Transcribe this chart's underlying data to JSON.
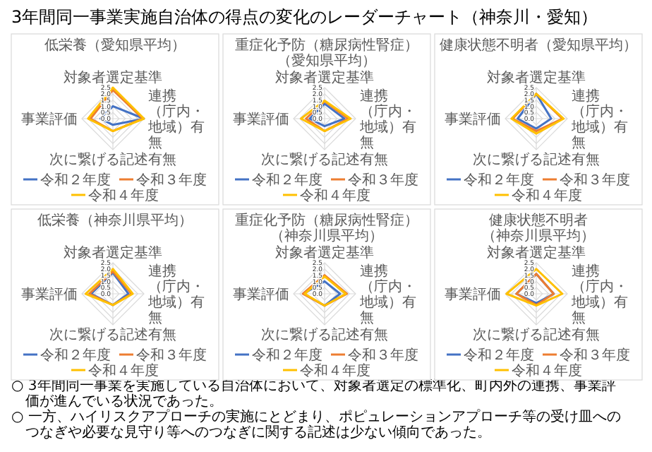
{
  "chart_data": [
    {
      "type": "other",
      "title": "3年間同一事業実施自治体の得点の変化のレーダーチャート（神奈川・愛知）"
    },
    {
      "type": "radar",
      "title": "低栄養（愛知県平均）",
      "categories": [
        "対象者選定基準",
        "連携（庁内・地域）有無",
        "次に繋げる記述有無",
        "事業評価"
      ],
      "ylim": [
        0,
        2.5
      ],
      "yticks": [
        {
          "value": 0,
          "label": "0.0"
        },
        {
          "value": 0.5,
          "label": "0.5"
        },
        {
          "value": 1,
          "label": "1.0"
        },
        {
          "value": 1.5,
          "label": "1.5"
        },
        {
          "value": 2,
          "label": "2.0"
        },
        {
          "value": 2.5,
          "label": "2.5"
        }
      ],
      "grid": true,
      "legend": "bottom",
      "series": [
        {
          "name": "令和２年度",
          "color": "#4472c4",
          "values": [
            1.0,
            2.5,
            0.5,
            1.0
          ]
        },
        {
          "name": "令和３年度",
          "color": "#ed7d31",
          "values": [
            2.3,
            2.4,
            1.0,
            1.8
          ]
        },
        {
          "name": "令和４年度",
          "color": "#ffc000",
          "values": [
            2.5,
            2.5,
            1.0,
            2.0
          ]
        }
      ]
    },
    {
      "type": "radar",
      "title": "重症化予防（糖尿病性腎症）（愛知県平均）",
      "categories": [
        "対象者選定基準",
        "連携（庁内・地域）有無",
        "次に繋げる記述有無",
        "事業評価"
      ],
      "ylim": [
        0,
        2.5
      ],
      "yticks": [
        {
          "value": 0,
          "label": "0.0"
        },
        {
          "value": 0.5,
          "label": "0.5"
        },
        {
          "value": 1,
          "label": "1.0"
        },
        {
          "value": 1.5,
          "label": "1.5"
        },
        {
          "value": 2,
          "label": "2.0"
        },
        {
          "value": 2.5,
          "label": "2.5"
        }
      ],
      "grid": true,
      "legend": "bottom",
      "series": [
        {
          "name": "令和２年度",
          "color": "#4472c4",
          "values": [
            1.2,
            1.6,
            0.6,
            1.2
          ]
        },
        {
          "name": "令和３年度",
          "color": "#ed7d31",
          "values": [
            1.4,
            1.9,
            1.0,
            1.5
          ]
        },
        {
          "name": "令和４年度",
          "color": "#ffc000",
          "values": [
            1.45,
            2.1,
            1.0,
            1.9
          ]
        }
      ]
    },
    {
      "type": "radar",
      "title": "健康状態不明者（愛知県平均）",
      "categories": [
        "対象者選定基準",
        "連携（庁内・地域）有無",
        "次に繋げる記述有無",
        "事業評価"
      ],
      "ylim": [
        0,
        2.5
      ],
      "yticks": [
        {
          "value": 0,
          "label": "0.0"
        },
        {
          "value": 0.5,
          "label": "0.5"
        },
        {
          "value": 1,
          "label": "1.0"
        },
        {
          "value": 1.5,
          "label": "1.5"
        },
        {
          "value": 2,
          "label": "2.0"
        },
        {
          "value": 2.5,
          "label": "2.5"
        }
      ],
      "grid": true,
      "legend": "bottom",
      "series": [
        {
          "name": "令和２年度",
          "color": "#4472c4",
          "values": [
            2.0,
            1.2,
            0.8,
            1.5
          ]
        },
        {
          "name": "令和３年度",
          "color": "#ed7d31",
          "values": [
            2.0,
            2.1,
            1.0,
            1.9
          ]
        },
        {
          "name": "令和４年度",
          "color": "#ffc000",
          "values": [
            2.0,
            2.2,
            1.2,
            2.0
          ]
        }
      ]
    },
    {
      "type": "radar",
      "title": "低栄養（神奈川県平均）",
      "categories": [
        "対象者選定基準",
        "連携（庁内・地域）有無",
        "次に繋げる記述有無",
        "事業評価"
      ],
      "ylim": [
        0,
        2.5
      ],
      "yticks": [
        {
          "value": 0,
          "label": "0.0"
        },
        {
          "value": 0.5,
          "label": "0.5"
        },
        {
          "value": 1,
          "label": "1.0"
        },
        {
          "value": 1.5,
          "label": "1.5"
        },
        {
          "value": 2,
          "label": "2.0"
        },
        {
          "value": 2.5,
          "label": "2.5"
        }
      ],
      "grid": true,
      "legend": "bottom",
      "series": [
        {
          "name": "令和２年度",
          "color": "#4472c4",
          "values": [
            1.7,
            1.25,
            0.9,
            1.75
          ]
        },
        {
          "name": "令和３年度",
          "color": "#ed7d31",
          "values": [
            1.8,
            1.5,
            0.9,
            1.9
          ]
        },
        {
          "name": "令和４年度",
          "color": "#ffc000",
          "values": [
            2.0,
            1.6,
            0.9,
            2.2
          ]
        }
      ]
    },
    {
      "type": "radar",
      "title": "重症化予防（糖尿病性腎症）（神奈川県平均）",
      "categories": [
        "対象者選定基準",
        "連携（庁内・地域）有無",
        "次に繋げる記述有無",
        "事業評価"
      ],
      "ylim": [
        0,
        2.5
      ],
      "yticks": [
        {
          "value": 0,
          "label": "0.0"
        },
        {
          "value": 0.5,
          "label": "0.5"
        },
        {
          "value": 1,
          "label": "1.0"
        },
        {
          "value": 1.5,
          "label": "1.5"
        },
        {
          "value": 2,
          "label": "2.0"
        },
        {
          "value": 2.5,
          "label": "2.5"
        }
      ],
      "grid": true,
      "legend": "bottom",
      "series": [
        {
          "name": "令和２年度",
          "color": "#4472c4",
          "values": [
            1.0,
            1.25,
            0.95,
            1.7
          ]
        },
        {
          "name": "令和３年度",
          "color": "#ed7d31",
          "values": [
            1.5,
            1.8,
            0.95,
            1.75
          ]
        },
        {
          "name": "令和４年度",
          "color": "#ffc000",
          "values": [
            1.4,
            1.7,
            0.95,
            1.6
          ]
        }
      ]
    },
    {
      "type": "radar",
      "title": "健康状態不明者（神奈川県平均）",
      "categories": [
        "対象者選定基準",
        "連携（庁内・地域）有無",
        "次に繋げる記述有無",
        "事業評価"
      ],
      "ylim": [
        0,
        2.5
      ],
      "yticks": [
        {
          "value": 0,
          "label": "0.0"
        },
        {
          "value": 0.5,
          "label": "0.5"
        },
        {
          "value": 1,
          "label": "1.0"
        },
        {
          "value": 1.5,
          "label": "1.5"
        },
        {
          "value": 2,
          "label": "2.0"
        },
        {
          "value": 2.5,
          "label": "2.5"
        }
      ],
      "grid": true,
      "legend": "bottom",
      "series": [
        {
          "name": "令和２年度",
          "color": "#4472c4",
          "values": [
            1.6,
            1.4,
            0.75,
            1.6
          ]
        },
        {
          "name": "令和３年度",
          "color": "#ed7d31",
          "values": [
            1.6,
            1.4,
            0.9,
            1.6
          ]
        },
        {
          "name": "令和４年度",
          "color": "#ffc000",
          "values": [
            2.0,
            2.1,
            0.95,
            2.4
          ]
        }
      ]
    },
    {
      "type": "other",
      "annotations": [
        "○ 3年間同一事業を実施している自治体において、対象者選定の標準化、町内外の連携、事業評価が進んでいる状況であった。",
        "○ 一方、ハイリスクアプローチの実施にとどまり、ポピュレーションアプローチ等の受け皿へのつなぎや必要な見守り等へのつなぎに関する記述は少ない傾向であった。"
      ]
    }
  ]
}
